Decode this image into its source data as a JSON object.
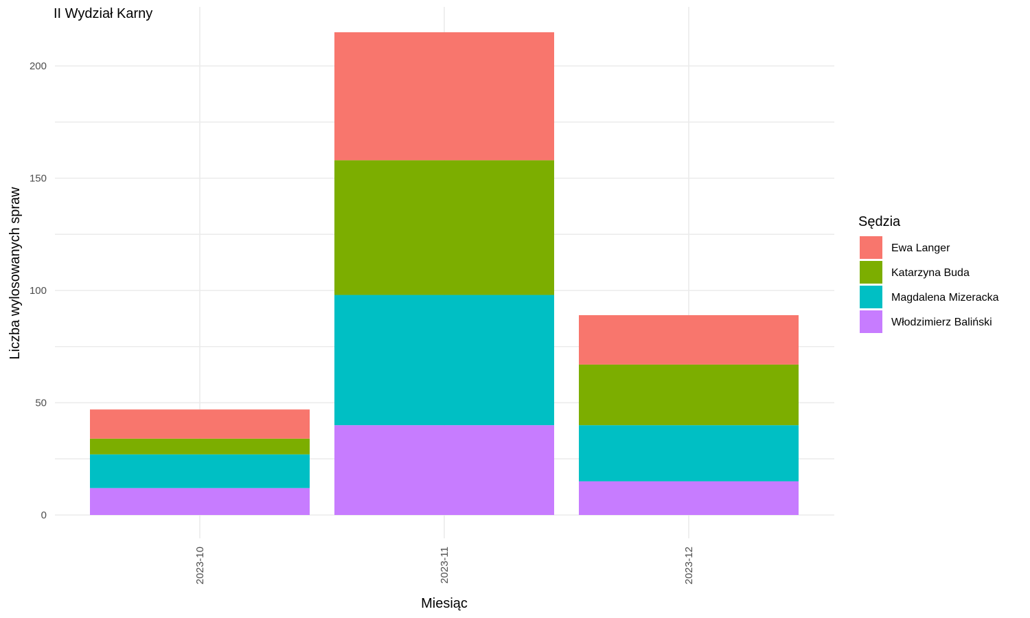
{
  "chart_data": {
    "type": "bar",
    "stacked": true,
    "title": "II Wydział Karny",
    "xlabel": "Miesiąc",
    "ylabel": "Liczba wylosowanych spraw",
    "categories": [
      "2023-10",
      "2023-11",
      "2023-12"
    ],
    "ylim": [
      0,
      220
    ],
    "yticks": [
      0,
      50,
      100,
      150,
      200
    ],
    "grid": true,
    "legend": {
      "title": "Sędzia",
      "position": "right"
    },
    "series": [
      {
        "name": "Włodzimierz Baliński",
        "color": "#C77CFF",
        "values": [
          12,
          40,
          15
        ]
      },
      {
        "name": "Magdalena Mizeracka",
        "color": "#00BFC4",
        "values": [
          15,
          58,
          25
        ]
      },
      {
        "name": "Katarzyna Buda",
        "color": "#7CAE00",
        "values": [
          7,
          60,
          27
        ]
      },
      {
        "name": "Ewa Langer",
        "color": "#F8766D",
        "values": [
          13,
          57,
          22
        ]
      }
    ],
    "legend_order": [
      "Ewa Langer",
      "Katarzyna Buda",
      "Magdalena Mizeracka",
      "Włodzimierz Baliński"
    ]
  }
}
